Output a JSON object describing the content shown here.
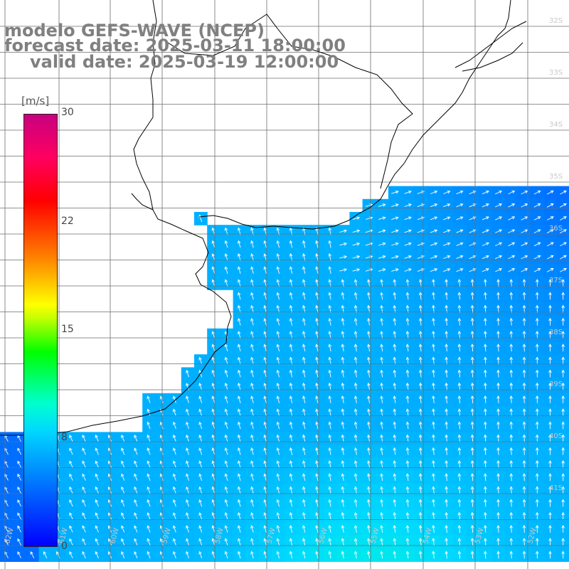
{
  "title": {
    "line1": "modelo GEFS-WAVE (NCEP)",
    "line2": "forecast date: 2025-03-11 18:00:00",
    "line3": "valid date: 2025-03-19 12:00:00"
  },
  "colorbar": {
    "unit": "[m/s]",
    "ticks": [
      "30",
      "22",
      "15",
      "8",
      "0"
    ],
    "tick_values": [
      30,
      22,
      15,
      8,
      0
    ],
    "range": [
      0,
      30
    ],
    "colors": [
      "#0000ff",
      "#00d8ff",
      "#00ffd0",
      "#00ff00",
      "#ffff00",
      "#ff8000",
      "#ff0000",
      "#c80080"
    ]
  },
  "latitude_labels": [
    "32S",
    "33S",
    "34S",
    "35S",
    "36S",
    "37S",
    "38S",
    "39S",
    "40S",
    "41S"
  ],
  "longitude_labels": [
    "62W",
    "61W",
    "60W",
    "59W",
    "58W",
    "57W",
    "56W",
    "55W",
    "54W",
    "53W",
    "52W"
  ],
  "colors": {
    "land": "#ffffff",
    "grid": "#6e6e6e",
    "coast": "#000000",
    "arrow": "#ffffff",
    "title": "#808080"
  }
}
